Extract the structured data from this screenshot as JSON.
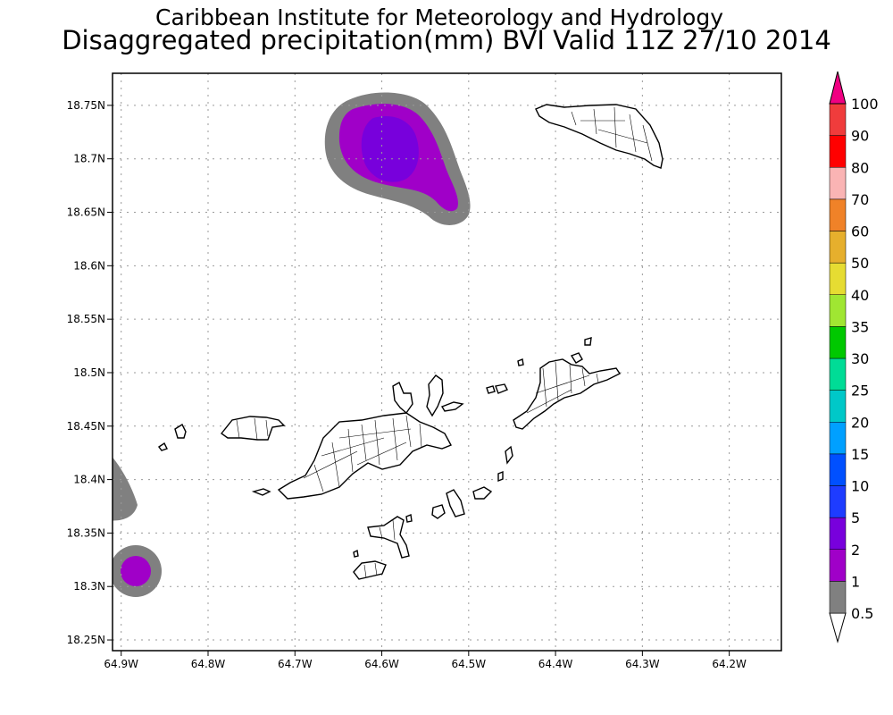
{
  "title_line1": "Caribbean Institute for Meteorology and Hydrology",
  "title_line2": "Disaggregated precipitation(mm) BVI Valid 11Z 27/10 2014",
  "map": {
    "lon_range": [
      -64.91,
      -64.14
    ],
    "lat_range": [
      18.24,
      18.78
    ],
    "x_ticks": [
      {
        "value": -64.9,
        "label": "64.9W"
      },
      {
        "value": -64.8,
        "label": "64.8W"
      },
      {
        "value": -64.7,
        "label": "64.7W"
      },
      {
        "value": -64.6,
        "label": "64.6W"
      },
      {
        "value": -64.5,
        "label": "64.5W"
      },
      {
        "value": -64.4,
        "label": "64.4W"
      },
      {
        "value": -64.3,
        "label": "64.3W"
      },
      {
        "value": -64.2,
        "label": "64.2W"
      }
    ],
    "y_ticks": [
      {
        "value": 18.25,
        "label": "18.25N"
      },
      {
        "value": 18.3,
        "label": "18.3N"
      },
      {
        "value": 18.35,
        "label": "18.35N"
      },
      {
        "value": 18.4,
        "label": "18.4N"
      },
      {
        "value": 18.45,
        "label": "18.45N"
      },
      {
        "value": 18.5,
        "label": "18.5N"
      },
      {
        "value": 18.55,
        "label": "18.55N"
      },
      {
        "value": 18.6,
        "label": "18.6N"
      },
      {
        "value": 18.65,
        "label": "18.65N"
      },
      {
        "value": 18.7,
        "label": "18.7N"
      },
      {
        "value": 18.75,
        "label": "18.75N"
      }
    ],
    "grid": "dotted",
    "precip_cells": [
      {
        "lon": -64.595,
        "lat": 18.708,
        "category": "1",
        "color": "#808080"
      },
      {
        "lon": -64.595,
        "lat": 18.708,
        "category": "2",
        "color": "#a000c8"
      },
      {
        "lon": -64.595,
        "lat": 18.708,
        "category": "5",
        "color": "#7800dc"
      },
      {
        "lon": -64.875,
        "lat": 18.317,
        "category": "1",
        "color": "#808080"
      },
      {
        "lon": -64.875,
        "lat": 18.317,
        "category": "2",
        "color": "#a000c8"
      },
      {
        "lon": -64.91,
        "lat": 18.405,
        "category": "1",
        "color": "#808080"
      }
    ]
  },
  "colorbar": {
    "labels": [
      "0.5",
      "1",
      "2",
      "5",
      "10",
      "15",
      "20",
      "25",
      "30",
      "35",
      "40",
      "50",
      "60",
      "70",
      "80",
      "90",
      "100"
    ],
    "colors": [
      "#808080",
      "#a000c8",
      "#7800dc",
      "#1e3cff",
      "#0050ff",
      "#00a0ff",
      "#00c8c8",
      "#00dc96",
      "#00c800",
      "#a0e632",
      "#e6dc32",
      "#e6af2d",
      "#f08228",
      "#fab4b4",
      "#ff0000",
      "#f03c3c",
      "#f00082"
    ]
  }
}
